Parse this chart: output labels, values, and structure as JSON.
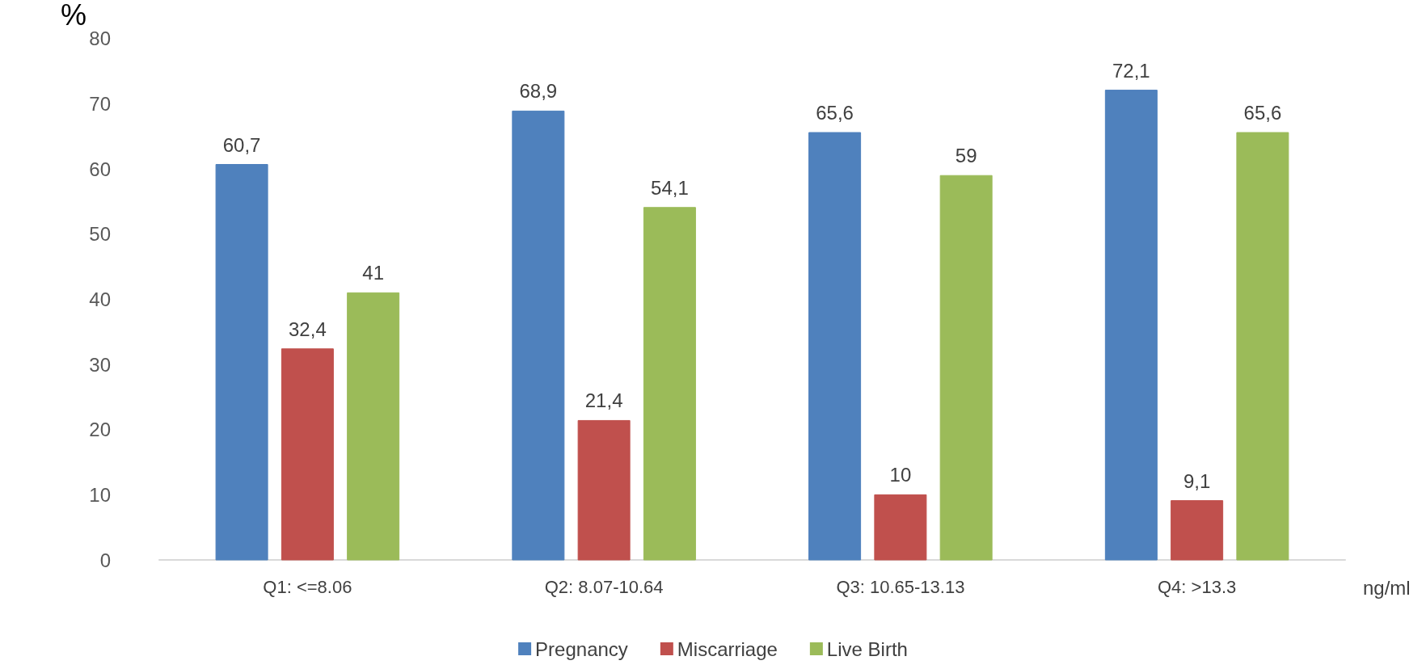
{
  "chart_data": {
    "type": "bar",
    "ylabel": "%",
    "xlabel": "ng/ml",
    "categories": [
      "Q1: <=8.06",
      "Q2: 8.07-10.64",
      "Q3: 10.65-13.13",
      "Q4: >13.3"
    ],
    "series": [
      {
        "name": "Pregnancy",
        "color": "#4f81bd",
        "values": [
          60.7,
          68.9,
          65.6,
          72.1
        ],
        "value_labels": [
          "60,7",
          "68,9",
          "65,6",
          "72,1"
        ]
      },
      {
        "name": "Miscarriage",
        "color": "#c0504d",
        "values": [
          32.4,
          21.4,
          10,
          9.1
        ],
        "value_labels": [
          "32,4",
          "21,4",
          "10",
          "9,1"
        ]
      },
      {
        "name": "Live Birth",
        "color": "#9bbb59",
        "values": [
          41,
          54.1,
          59,
          65.6
        ],
        "value_labels": [
          "41",
          "54,1",
          "59",
          "65,6"
        ]
      }
    ],
    "ylim": [
      0,
      80
    ],
    "yticks": [
      0,
      10,
      20,
      30,
      40,
      50,
      60,
      70,
      80
    ],
    "grid": false,
    "legend": "bottom"
  }
}
